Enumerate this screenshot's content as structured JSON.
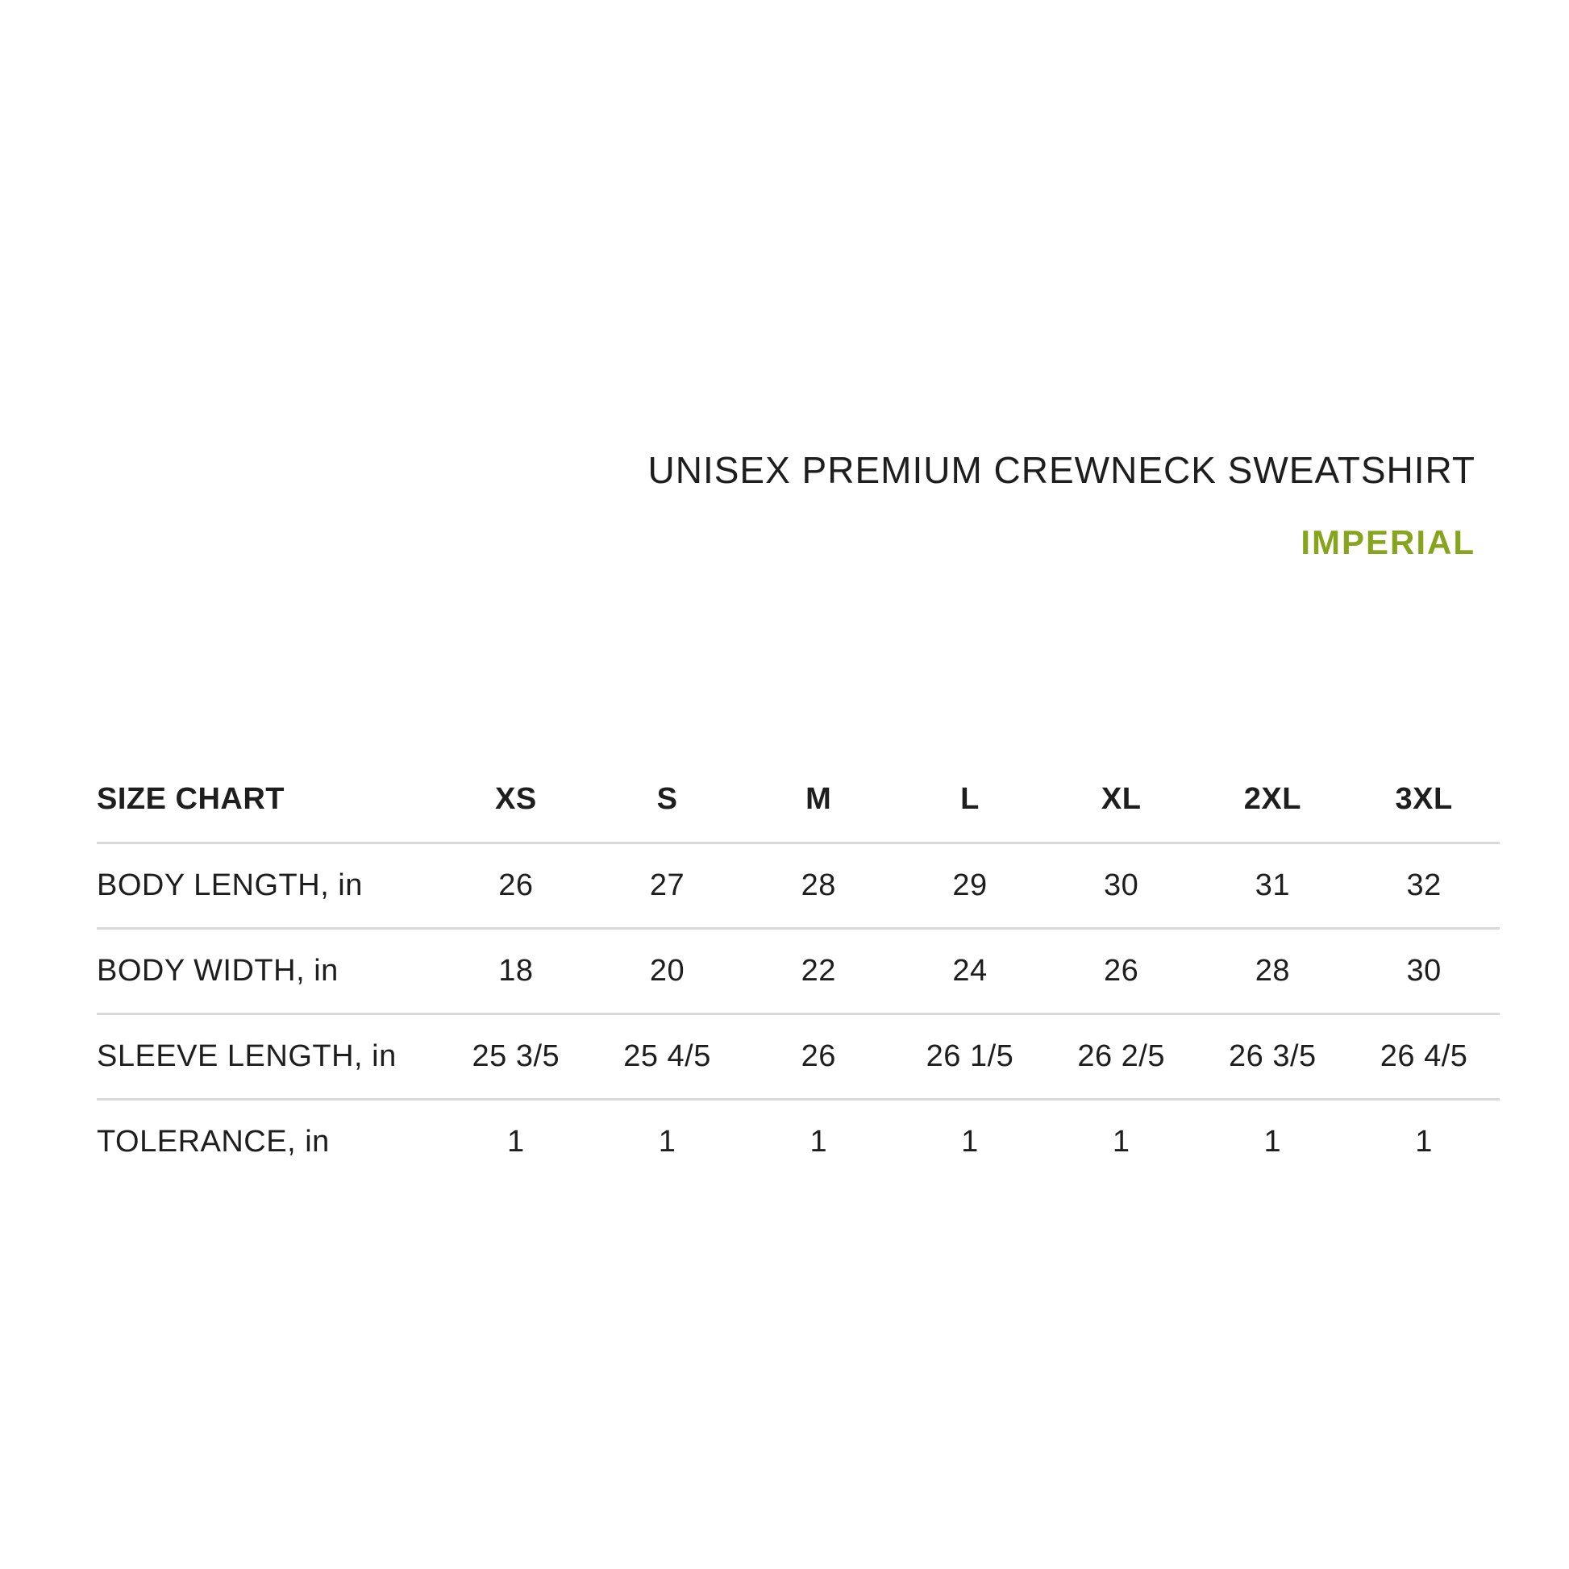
{
  "header": {
    "title": "UNISEX PREMIUM CREWNECK SWEATSHIRT",
    "subtitle": "IMPERIAL",
    "accent_color": "#86a41c"
  },
  "size_table": {
    "corner_label": "SIZE CHART",
    "columns": [
      "XS",
      "S",
      "M",
      "L",
      "XL",
      "2XL",
      "3XL"
    ],
    "rows": [
      {
        "label": "BODY LENGTH, in",
        "values": [
          "26",
          "27",
          "28",
          "29",
          "30",
          "31",
          "32"
        ]
      },
      {
        "label": "BODY WIDTH, in",
        "values": [
          "18",
          "20",
          "22",
          "24",
          "26",
          "28",
          "30"
        ]
      },
      {
        "label": "SLEEVE LENGTH, in",
        "values": [
          "25 3/5",
          "25 4/5",
          "26",
          "26 1/5",
          "26 2/5",
          "26 3/5",
          "26 4/5"
        ]
      },
      {
        "label": "TOLERANCE, in",
        "values": [
          "1",
          "1",
          "1",
          "1",
          "1",
          "1",
          "1"
        ]
      }
    ],
    "divider_color": "#d9d9d9"
  },
  "chart_data": {
    "type": "table",
    "title": "UNISEX PREMIUM CREWNECK SWEATSHIRT",
    "subtitle": "IMPERIAL",
    "columns": [
      "SIZE CHART",
      "XS",
      "S",
      "M",
      "L",
      "XL",
      "2XL",
      "3XL"
    ],
    "rows": [
      [
        "BODY LENGTH, in",
        "26",
        "27",
        "28",
        "29",
        "30",
        "31",
        "32"
      ],
      [
        "BODY WIDTH, in",
        "18",
        "20",
        "22",
        "24",
        "26",
        "28",
        "30"
      ],
      [
        "SLEEVE LENGTH, in",
        "25 3/5",
        "25 4/5",
        "26",
        "26 1/5",
        "26 2/5",
        "26 3/5",
        "26 4/5"
      ],
      [
        "TOLERANCE, in",
        "1",
        "1",
        "1",
        "1",
        "1",
        "1",
        "1"
      ]
    ]
  }
}
